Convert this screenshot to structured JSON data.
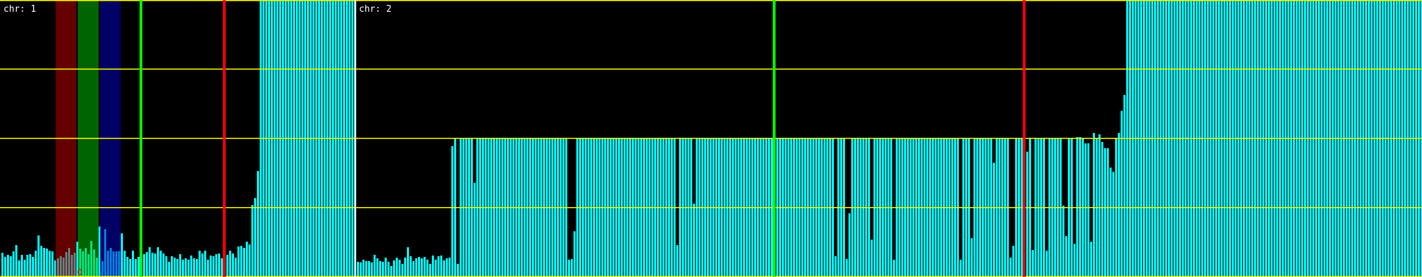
{
  "colors": {
    "background": "#000000",
    "bar": "#00ffff",
    "grid": "#ffff00",
    "separator": "#ffffff",
    "marker_green": "#00ff00",
    "marker_red": "#ff0000",
    "band_red": "rgba(200,0,0,0.5)",
    "band_green": "rgba(0,200,0,0.5)",
    "band_blue": "rgba(0,0,200,0.5)"
  },
  "chart_data": {
    "type": "bar",
    "ylim": [
      0,
      4
    ],
    "grid_y": [
      1,
      2,
      3
    ],
    "grid": true,
    "panels": [
      {
        "label": "chr: 1",
        "values": [
          0.35,
          0.29,
          0.32,
          0.3,
          0.37,
          0.46,
          0.24,
          0.32,
          0.25,
          0.32,
          0.33,
          0.29,
          0.38,
          0.6,
          0.45,
          0.42,
          0.41,
          0.38,
          0.37,
          0.24,
          0.27,
          0.3,
          0.28,
          0.36,
          0.42,
          0.32,
          0.35,
          0.51,
          0.41,
          0.37,
          0.42,
          0.33,
          0.52,
          0.4,
          0.28,
          0.73,
          0.23,
          0.69,
          0.38,
          0.42,
          0.37,
          0.37,
          0.37,
          0.63,
          0.38,
          0.29,
          0.26,
          0.38,
          0.26,
          0.29,
          0.3,
          0.33,
          0.36,
          0.43,
          0.35,
          0.34,
          0.43,
          0.38,
          0.34,
          0.3,
          0.22,
          0.3,
          0.28,
          0.26,
          0.33,
          0.25,
          0.27,
          0.25,
          0.31,
          0.27,
          0.26,
          0.38,
          0.34,
          0.38,
          0.25,
          0.31,
          0.3,
          0.33,
          0.34,
          0.27,
          0.3,
          0.32,
          0.38,
          0.34,
          0.28,
          0.44,
          0.45,
          0.42,
          0.51,
          0.47,
          1.04,
          1.14,
          1.53,
          4,
          4,
          4,
          4,
          4,
          4,
          4,
          4,
          4,
          4,
          4,
          4,
          4,
          4,
          4,
          4,
          4,
          4,
          4,
          4,
          4,
          4,
          4,
          4,
          4,
          4,
          4,
          4,
          4,
          4,
          4,
          4,
          4,
          4,
          4
        ],
        "bands": [
          {
            "start": 20,
            "end": 26,
            "color": "band_red"
          },
          {
            "start": 28,
            "end": 34,
            "color": "band_green"
          },
          {
            "start": 36,
            "end": 42,
            "color": "band_blue"
          }
        ],
        "lines": [
          {
            "bin": 50,
            "color": "marker_green"
          },
          {
            "bin": 80,
            "color": "marker_red"
          }
        ],
        "point_marker": {
          "bin": 28,
          "color": "marker_red"
        }
      },
      {
        "label": "chr: 2",
        "values": [
          0.22,
          0.21,
          0.25,
          0.23,
          0.23,
          0.21,
          0.32,
          0.27,
          0.23,
          0.22,
          0.28,
          0.22,
          0.16,
          0.24,
          0.28,
          0.25,
          0.19,
          0.28,
          0.43,
          0.3,
          0.23,
          0.27,
          0.29,
          0.27,
          0.29,
          0.25,
          0.19,
          0.31,
          0.25,
          0.3,
          0.31,
          0.24,
          0.27,
          0.28,
          1.89,
          2,
          0.19,
          2,
          2,
          2,
          2,
          2,
          1.36,
          2,
          2,
          2,
          2,
          2,
          2,
          2,
          2,
          2,
          2,
          2,
          2,
          2,
          2,
          2,
          2,
          2,
          2,
          2,
          2,
          2,
          2,
          2,
          2,
          2,
          2,
          2,
          2,
          2,
          2,
          2,
          2,
          2,
          0.25,
          0.26,
          0.66,
          2,
          2,
          2,
          2,
          2,
          2,
          2,
          2,
          2,
          2,
          2,
          2,
          2,
          2,
          2,
          2,
          2,
          2,
          2,
          2,
          2,
          2,
          2,
          2,
          2,
          2,
          2,
          2,
          2,
          2,
          2,
          2,
          2,
          2,
          2,
          2,
          0.46,
          2,
          2,
          2,
          2,
          2,
          1.06,
          2,
          2,
          2,
          2,
          2,
          2,
          2,
          2,
          2,
          2,
          2,
          2,
          2,
          2,
          2,
          2,
          2,
          2,
          2,
          2,
          2,
          2,
          2,
          2,
          2,
          2,
          2,
          2,
          2,
          2,
          2,
          2,
          2,
          2,
          2,
          2,
          2,
          2,
          2,
          2,
          2,
          2,
          2,
          2,
          2,
          2,
          2,
          2,
          2,
          2,
          0.3,
          2,
          2,
          2,
          0.26,
          0.92,
          2,
          2,
          2,
          2,
          2,
          2,
          2,
          0.54,
          2,
          2,
          2,
          2,
          2,
          2,
          2,
          0.25,
          2,
          2,
          2,
          2,
          2,
          2,
          2,
          2,
          2,
          2,
          2,
          2,
          2,
          2,
          2,
          2,
          2,
          2,
          2,
          2,
          2,
          2,
          2,
          0.25,
          2,
          2,
          2,
          0.56,
          2,
          2,
          2,
          2,
          2,
          2,
          2,
          1.65,
          2,
          2,
          2,
          2,
          2,
          0.28,
          0.45,
          2,
          2,
          2,
          2,
          1.81,
          2,
          0.39,
          2,
          2,
          2,
          2,
          0.38,
          2,
          2,
          2,
          2.01,
          2,
          1.03,
          0.59,
          2.01,
          2.01,
          0.48,
          2.02,
          2.02,
          2,
          1.93,
          1.93,
          0.51,
          2.08,
          2,
          2.06,
          1.95,
          1.86,
          1.86,
          1.58,
          1.52,
          2,
          2.08,
          2.4,
          2.63,
          4,
          4,
          4,
          4,
          4,
          4,
          4,
          4,
          4,
          4,
          4,
          4,
          4,
          4,
          4,
          4,
          4,
          4,
          4,
          4,
          4,
          4,
          4,
          4,
          4,
          4,
          4,
          4,
          4,
          4,
          4,
          4,
          4,
          4,
          4,
          4,
          4,
          4,
          4,
          4,
          4,
          4,
          4,
          4,
          4,
          4,
          4,
          4,
          4,
          4,
          4,
          4,
          4,
          4,
          4,
          4,
          4,
          4,
          4,
          4,
          4,
          4,
          4,
          4,
          4,
          4,
          4,
          4,
          4,
          4,
          4,
          4,
          4,
          4,
          4,
          4,
          4,
          4,
          4,
          4,
          4,
          4,
          4,
          4,
          4,
          4,
          4,
          4,
          4,
          4,
          4,
          4,
          4,
          4,
          4,
          4,
          4,
          4,
          4,
          4,
          4,
          4,
          4,
          4,
          4,
          4,
          4
        ],
        "bands": [],
        "lines": [
          {
            "bin": 150,
            "color": "marker_green"
          },
          {
            "bin": 240,
            "color": "marker_red"
          }
        ]
      }
    ]
  }
}
